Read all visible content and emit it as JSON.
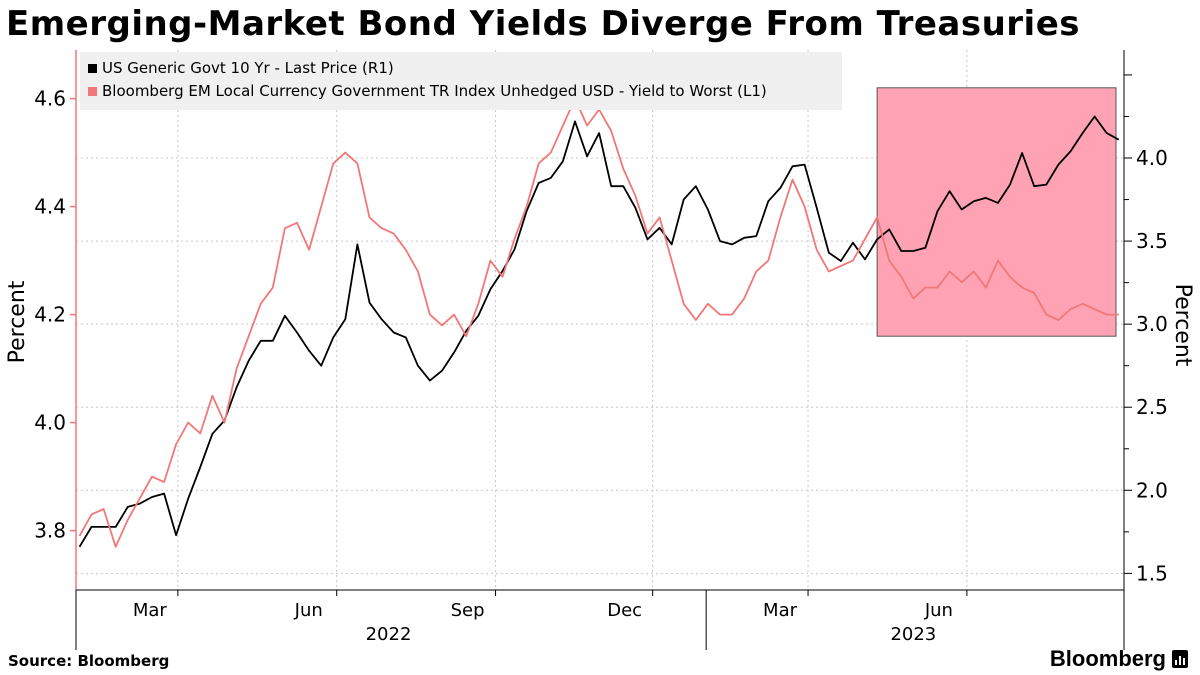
{
  "title": "Emerging-Market Bond Yields Diverge From Treasuries",
  "source": "Source: Bloomberg",
  "brand": "Bloomberg",
  "colors": {
    "us10y": "#000000",
    "em": "#f07878",
    "highlight": "#ffa3b4"
  },
  "chart_data": {
    "type": "line",
    "legend_position": "top-left",
    "grid": true,
    "left_axis": {
      "label": "Percent",
      "range": [
        3.69,
        4.69
      ],
      "ticks": [
        3.8,
        4.0,
        4.2,
        4.4,
        4.6
      ],
      "tick_labels": [
        "3.8",
        "4.0",
        "4.2",
        "4.4",
        "4.6"
      ]
    },
    "right_axis": {
      "label": "Percent",
      "range": [
        1.4,
        4.65
      ],
      "ticks": [
        1.5,
        2.0,
        2.5,
        3.0,
        3.5,
        4.0
      ],
      "tick_labels": [
        "1.5",
        "2.0",
        "2.5",
        "3.0",
        "3.5",
        "4.0"
      ]
    },
    "x_axis": {
      "range": [
        "2022-01-01",
        "2023-08-31"
      ],
      "months": [
        {
          "date": "2022-03-01",
          "label": "Mar"
        },
        {
          "date": "2022-06-01",
          "label": "Jun"
        },
        {
          "date": "2022-09-01",
          "label": "Sep"
        },
        {
          "date": "2022-12-01",
          "label": "Dec"
        },
        {
          "date": "2023-03-01",
          "label": "Mar"
        },
        {
          "date": "2023-06-01",
          "label": "Jun"
        }
      ],
      "years": [
        {
          "date": "2022-07-01",
          "label": "2022"
        },
        {
          "date": "2023-05-01",
          "label": "2023"
        }
      ],
      "boundaries": [
        "2022-01-01",
        "2023-01-01",
        "2023-08-31"
      ]
    },
    "highlight": {
      "x": [
        "2023-04-10",
        "2023-08-31"
      ],
      "y_left": [
        4.16,
        4.62
      ]
    },
    "series": [
      {
        "name": "US Generic Govt 10 Yr - Last Price (R1)",
        "axis": "right",
        "color": "#000000",
        "points": [
          [
            "2022-01-03",
            1.66
          ],
          [
            "2022-01-10",
            1.78
          ],
          [
            "2022-01-17",
            1.78
          ],
          [
            "2022-01-24",
            1.78
          ],
          [
            "2022-01-31",
            1.9
          ],
          [
            "2022-02-07",
            1.92
          ],
          [
            "2022-02-14",
            1.96
          ],
          [
            "2022-02-21",
            1.98
          ],
          [
            "2022-02-28",
            1.73
          ],
          [
            "2022-03-07",
            1.95
          ],
          [
            "2022-03-14",
            2.14
          ],
          [
            "2022-03-21",
            2.34
          ],
          [
            "2022-03-28",
            2.42
          ],
          [
            "2022-04-04",
            2.62
          ],
          [
            "2022-04-11",
            2.78
          ],
          [
            "2022-04-18",
            2.9
          ],
          [
            "2022-04-25",
            2.9
          ],
          [
            "2022-05-02",
            3.05
          ],
          [
            "2022-05-09",
            2.95
          ],
          [
            "2022-05-16",
            2.84
          ],
          [
            "2022-05-23",
            2.75
          ],
          [
            "2022-05-30",
            2.92
          ],
          [
            "2022-06-06",
            3.03
          ],
          [
            "2022-06-13",
            3.48
          ],
          [
            "2022-06-20",
            3.13
          ],
          [
            "2022-06-27",
            3.03
          ],
          [
            "2022-07-04",
            2.95
          ],
          [
            "2022-07-11",
            2.92
          ],
          [
            "2022-07-18",
            2.75
          ],
          [
            "2022-07-25",
            2.66
          ],
          [
            "2022-08-01",
            2.72
          ],
          [
            "2022-08-08",
            2.83
          ],
          [
            "2022-08-15",
            2.96
          ],
          [
            "2022-08-22",
            3.05
          ],
          [
            "2022-08-29",
            3.21
          ],
          [
            "2022-09-05",
            3.32
          ],
          [
            "2022-09-12",
            3.45
          ],
          [
            "2022-09-19",
            3.68
          ],
          [
            "2022-09-26",
            3.85
          ],
          [
            "2022-10-03",
            3.88
          ],
          [
            "2022-10-10",
            3.98
          ],
          [
            "2022-10-17",
            4.22
          ],
          [
            "2022-10-24",
            4.01
          ],
          [
            "2022-10-31",
            4.15
          ],
          [
            "2022-11-07",
            3.83
          ],
          [
            "2022-11-14",
            3.83
          ],
          [
            "2022-11-21",
            3.7
          ],
          [
            "2022-11-28",
            3.51
          ],
          [
            "2022-12-05",
            3.58
          ],
          [
            "2022-12-12",
            3.48
          ],
          [
            "2022-12-19",
            3.75
          ],
          [
            "2022-12-26",
            3.83
          ],
          [
            "2023-01-02",
            3.69
          ],
          [
            "2023-01-09",
            3.5
          ],
          [
            "2023-01-16",
            3.48
          ],
          [
            "2023-01-23",
            3.52
          ],
          [
            "2023-01-30",
            3.53
          ],
          [
            "2023-02-06",
            3.74
          ],
          [
            "2023-02-13",
            3.82
          ],
          [
            "2023-02-20",
            3.95
          ],
          [
            "2023-02-27",
            3.96
          ],
          [
            "2023-03-06",
            3.7
          ],
          [
            "2023-03-13",
            3.43
          ],
          [
            "2023-03-20",
            3.38
          ],
          [
            "2023-03-27",
            3.49
          ],
          [
            "2023-04-03",
            3.39
          ],
          [
            "2023-04-10",
            3.51
          ],
          [
            "2023-04-17",
            3.57
          ],
          [
            "2023-04-24",
            3.44
          ],
          [
            "2023-05-01",
            3.44
          ],
          [
            "2023-05-08",
            3.46
          ],
          [
            "2023-05-15",
            3.68
          ],
          [
            "2023-05-22",
            3.8
          ],
          [
            "2023-05-29",
            3.69
          ],
          [
            "2023-06-05",
            3.74
          ],
          [
            "2023-06-12",
            3.76
          ],
          [
            "2023-06-19",
            3.73
          ],
          [
            "2023-06-26",
            3.84
          ],
          [
            "2023-07-03",
            4.03
          ],
          [
            "2023-07-10",
            3.83
          ],
          [
            "2023-07-17",
            3.84
          ],
          [
            "2023-07-24",
            3.96
          ],
          [
            "2023-07-31",
            4.04
          ],
          [
            "2023-08-07",
            4.15
          ],
          [
            "2023-08-14",
            4.25
          ],
          [
            "2023-08-21",
            4.15
          ],
          [
            "2023-08-28",
            4.11
          ]
        ]
      },
      {
        "name": "Bloomberg EM Local Currency Government TR Index Unhedged USD - Yield to Worst (L1)",
        "axis": "left",
        "color": "#f07878",
        "points": [
          [
            "2022-01-03",
            3.79
          ],
          [
            "2022-01-10",
            3.83
          ],
          [
            "2022-01-17",
            3.84
          ],
          [
            "2022-01-24",
            3.77
          ],
          [
            "2022-01-31",
            3.82
          ],
          [
            "2022-02-07",
            3.86
          ],
          [
            "2022-02-14",
            3.9
          ],
          [
            "2022-02-21",
            3.89
          ],
          [
            "2022-02-28",
            3.96
          ],
          [
            "2022-03-07",
            4.0
          ],
          [
            "2022-03-14",
            3.98
          ],
          [
            "2022-03-21",
            4.05
          ],
          [
            "2022-03-28",
            4.0
          ],
          [
            "2022-04-04",
            4.1
          ],
          [
            "2022-04-11",
            4.16
          ],
          [
            "2022-04-18",
            4.22
          ],
          [
            "2022-04-25",
            4.25
          ],
          [
            "2022-05-02",
            4.36
          ],
          [
            "2022-05-09",
            4.37
          ],
          [
            "2022-05-16",
            4.32
          ],
          [
            "2022-05-23",
            4.4
          ],
          [
            "2022-05-30",
            4.48
          ],
          [
            "2022-06-06",
            4.5
          ],
          [
            "2022-06-13",
            4.48
          ],
          [
            "2022-06-20",
            4.38
          ],
          [
            "2022-06-27",
            4.36
          ],
          [
            "2022-07-04",
            4.35
          ],
          [
            "2022-07-11",
            4.32
          ],
          [
            "2022-07-18",
            4.28
          ],
          [
            "2022-07-25",
            4.2
          ],
          [
            "2022-08-01",
            4.18
          ],
          [
            "2022-08-08",
            4.2
          ],
          [
            "2022-08-15",
            4.16
          ],
          [
            "2022-08-22",
            4.22
          ],
          [
            "2022-08-29",
            4.3
          ],
          [
            "2022-09-05",
            4.27
          ],
          [
            "2022-09-12",
            4.34
          ],
          [
            "2022-09-19",
            4.4
          ],
          [
            "2022-09-26",
            4.48
          ],
          [
            "2022-10-03",
            4.5
          ],
          [
            "2022-10-10",
            4.55
          ],
          [
            "2022-10-17",
            4.6
          ],
          [
            "2022-10-24",
            4.55
          ],
          [
            "2022-10-31",
            4.58
          ],
          [
            "2022-11-07",
            4.54
          ],
          [
            "2022-11-14",
            4.47
          ],
          [
            "2022-11-21",
            4.42
          ],
          [
            "2022-11-28",
            4.35
          ],
          [
            "2022-12-05",
            4.38
          ],
          [
            "2022-12-12",
            4.3
          ],
          [
            "2022-12-19",
            4.22
          ],
          [
            "2022-12-26",
            4.19
          ],
          [
            "2023-01-02",
            4.22
          ],
          [
            "2023-01-09",
            4.2
          ],
          [
            "2023-01-16",
            4.2
          ],
          [
            "2023-01-23",
            4.23
          ],
          [
            "2023-01-30",
            4.28
          ],
          [
            "2023-02-06",
            4.3
          ],
          [
            "2023-02-13",
            4.38
          ],
          [
            "2023-02-20",
            4.45
          ],
          [
            "2023-02-27",
            4.4
          ],
          [
            "2023-03-06",
            4.32
          ],
          [
            "2023-03-13",
            4.28
          ],
          [
            "2023-03-20",
            4.29
          ],
          [
            "2023-03-27",
            4.3
          ],
          [
            "2023-04-03",
            4.34
          ],
          [
            "2023-04-10",
            4.38
          ],
          [
            "2023-04-17",
            4.3
          ],
          [
            "2023-04-24",
            4.27
          ],
          [
            "2023-05-01",
            4.23
          ],
          [
            "2023-05-08",
            4.25
          ],
          [
            "2023-05-15",
            4.25
          ],
          [
            "2023-05-22",
            4.28
          ],
          [
            "2023-05-29",
            4.26
          ],
          [
            "2023-06-05",
            4.28
          ],
          [
            "2023-06-12",
            4.25
          ],
          [
            "2023-06-19",
            4.3
          ],
          [
            "2023-06-26",
            4.27
          ],
          [
            "2023-07-03",
            4.25
          ],
          [
            "2023-07-10",
            4.24
          ],
          [
            "2023-07-17",
            4.2
          ],
          [
            "2023-07-24",
            4.19
          ],
          [
            "2023-07-31",
            4.21
          ],
          [
            "2023-08-07",
            4.22
          ],
          [
            "2023-08-14",
            4.21
          ],
          [
            "2023-08-21",
            4.2
          ],
          [
            "2023-08-28",
            4.2
          ]
        ]
      }
    ]
  }
}
